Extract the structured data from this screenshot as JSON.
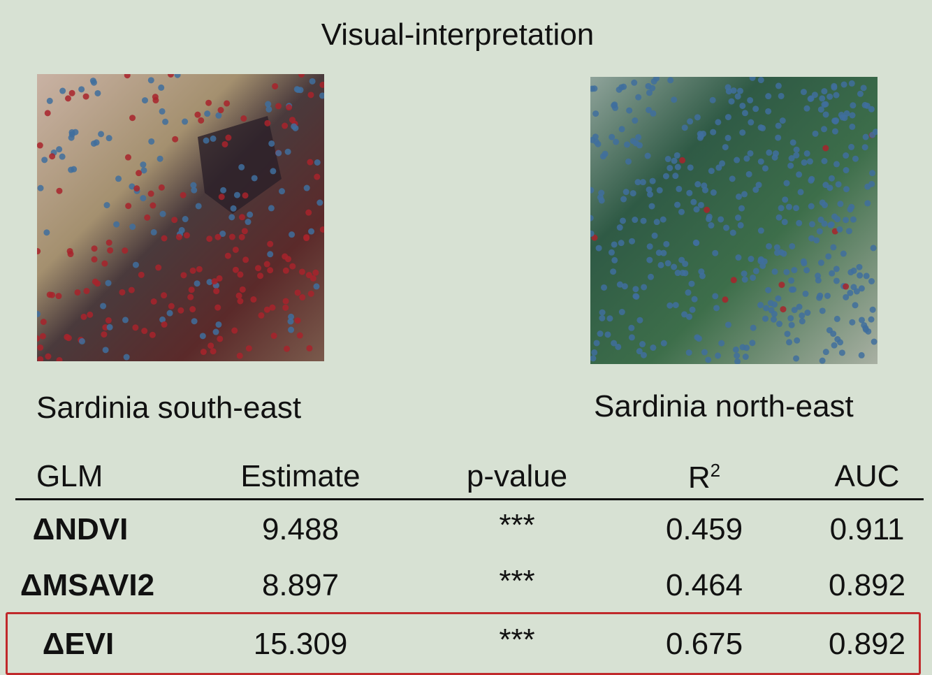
{
  "title": "Visual-interpretation",
  "panels": [
    {
      "caption": "Sardinia south-east"
    },
    {
      "caption": "Sardinia north-east"
    }
  ],
  "table": {
    "header": [
      "GLM",
      "Estimate",
      "p-value",
      {
        "text": "R",
        "sup": "2"
      },
      "AUC"
    ],
    "rows": [
      [
        "ΔNDVI",
        "9.488",
        "***",
        "0.459",
        "0.911"
      ],
      [
        "ΔMSAVI2",
        "8.897",
        "***",
        "0.464",
        "0.892"
      ],
      [
        "ΔEVI",
        "15.309",
        "***",
        "0.675",
        "0.892"
      ]
    ]
  }
}
